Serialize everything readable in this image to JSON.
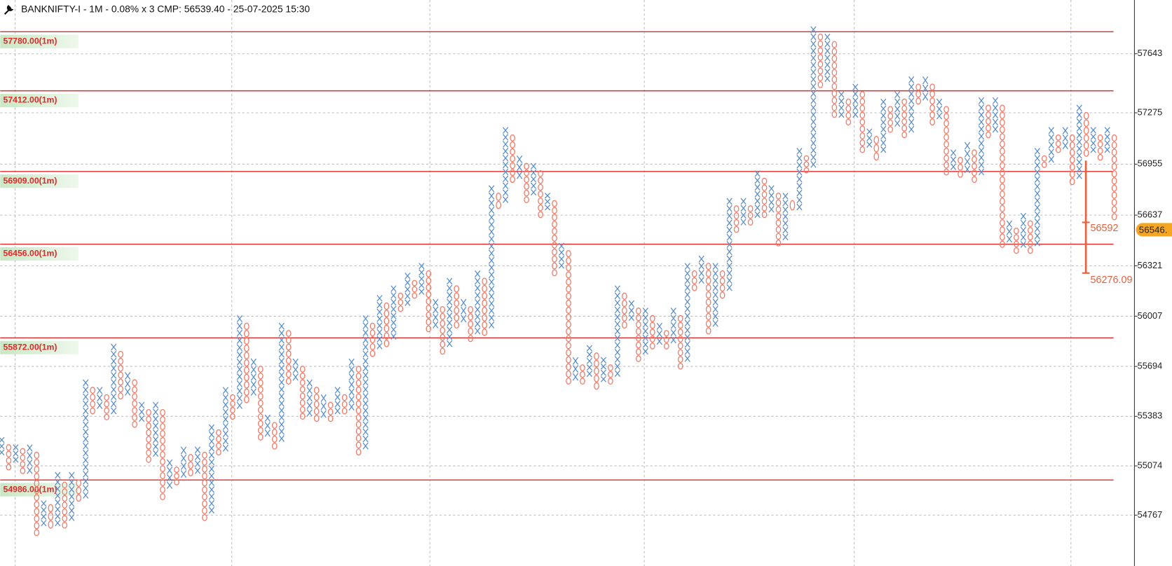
{
  "chart_data": {
    "type": "point-and-figure",
    "title": "BANKNIFTY-I - 1M - 0.08% x 3 CMP: 56539.40 - 25-07-2025 15:30",
    "ylim": [
      54450,
      57978
    ],
    "yticks": [
      54767,
      55074,
      55383,
      55694,
      56007,
      56321,
      56637,
      56955,
      57275,
      57643
    ],
    "grid": true,
    "x_color": "#5b8fc9",
    "o_color": "#ee7a68",
    "level_color": "#e02a2a",
    "levels": [
      {
        "value": 57780,
        "label": "57780.00(1m)"
      },
      {
        "value": 57412,
        "label": "57412.00(1m)"
      },
      {
        "value": 56909,
        "label": "56909.00(1m)"
      },
      {
        "value": 56456,
        "label": "56456.00(1m)"
      },
      {
        "value": 55872,
        "label": "55872.00(1m)"
      },
      {
        "value": 54986,
        "label": "54986.00(1m)"
      }
    ],
    "last_price": {
      "value": 56546,
      "label": "56546."
    },
    "projection": {
      "start": 56977,
      "target1": 56592,
      "target2": 56276.09,
      "color": "#e8603c"
    },
    "columns": [
      {
        "kind": "X",
        "high": 55255,
        "low": 55139
      },
      {
        "kind": "O",
        "high": 55209,
        "low": 55046
      },
      {
        "kind": "X",
        "high": 55209,
        "low": 55093
      },
      {
        "kind": "O",
        "high": 55186,
        "low": 55023
      },
      {
        "kind": "X",
        "high": 55209,
        "low": 55023
      },
      {
        "kind": "O",
        "high": 55162,
        "low": 54636
      },
      {
        "kind": "X",
        "high": 54860,
        "low": 54697
      },
      {
        "kind": "O",
        "high": 54836,
        "low": 54683
      },
      {
        "kind": "X",
        "high": 55037,
        "low": 54697
      },
      {
        "kind": "O",
        "high": 54976,
        "low": 54683
      },
      {
        "kind": "X",
        "high": 55037,
        "low": 54730
      },
      {
        "kind": "O",
        "high": 54990,
        "low": 54851
      },
      {
        "kind": "X",
        "high": 55614,
        "low": 54869
      },
      {
        "kind": "O",
        "high": 55567,
        "low": 55395
      },
      {
        "kind": "X",
        "high": 55567,
        "low": 55428
      },
      {
        "kind": "O",
        "high": 55521,
        "low": 55358
      },
      {
        "kind": "X",
        "high": 55837,
        "low": 55395
      },
      {
        "kind": "O",
        "high": 55791,
        "low": 55488
      },
      {
        "kind": "X",
        "high": 55660,
        "low": 55511
      },
      {
        "kind": "O",
        "high": 55614,
        "low": 55311
      },
      {
        "kind": "X",
        "high": 55474,
        "low": 55348
      },
      {
        "kind": "O",
        "high": 55428,
        "low": 55093
      },
      {
        "kind": "X",
        "high": 55474,
        "low": 55130
      },
      {
        "kind": "O",
        "high": 55428,
        "low": 54860
      },
      {
        "kind": "X",
        "high": 55116,
        "low": 54930
      },
      {
        "kind": "O",
        "high": 55069,
        "low": 54953
      },
      {
        "kind": "X",
        "high": 55195,
        "low": 54999
      },
      {
        "kind": "O",
        "high": 55148,
        "low": 55009
      },
      {
        "kind": "X",
        "high": 55195,
        "low": 55023
      },
      {
        "kind": "O",
        "high": 55162,
        "low": 54730
      },
      {
        "kind": "X",
        "high": 55334,
        "low": 54776
      },
      {
        "kind": "O",
        "high": 55302,
        "low": 55139
      },
      {
        "kind": "X",
        "high": 55567,
        "low": 55162
      },
      {
        "kind": "O",
        "high": 55521,
        "low": 55362
      },
      {
        "kind": "X",
        "high": 56014,
        "low": 55428
      },
      {
        "kind": "O",
        "high": 55967,
        "low": 55465
      },
      {
        "kind": "X",
        "high": 55744,
        "low": 55511
      },
      {
        "kind": "O",
        "high": 55698,
        "low": 55232
      },
      {
        "kind": "X",
        "high": 55395,
        "low": 55255
      },
      {
        "kind": "O",
        "high": 55348,
        "low": 55176
      },
      {
        "kind": "X",
        "high": 55967,
        "low": 55223
      },
      {
        "kind": "O",
        "high": 55921,
        "low": 55581
      },
      {
        "kind": "X",
        "high": 55744,
        "low": 55604
      },
      {
        "kind": "O",
        "high": 55698,
        "low": 55362
      },
      {
        "kind": "X",
        "high": 55614,
        "low": 55381
      },
      {
        "kind": "O",
        "high": 55567,
        "low": 55348
      },
      {
        "kind": "X",
        "high": 55521,
        "low": 55372
      },
      {
        "kind": "O",
        "high": 55474,
        "low": 55348
      },
      {
        "kind": "X",
        "high": 55567,
        "low": 55395
      },
      {
        "kind": "O",
        "high": 55521,
        "low": 55395
      },
      {
        "kind": "X",
        "high": 55744,
        "low": 55418
      },
      {
        "kind": "O",
        "high": 55698,
        "low": 55139
      },
      {
        "kind": "X",
        "high": 56014,
        "low": 55176
      },
      {
        "kind": "O",
        "high": 55967,
        "low": 55753
      },
      {
        "kind": "X",
        "high": 56140,
        "low": 55800
      },
      {
        "kind": "O",
        "high": 56093,
        "low": 55814
      },
      {
        "kind": "X",
        "high": 56200,
        "low": 55860
      },
      {
        "kind": "O",
        "high": 56154,
        "low": 56033
      },
      {
        "kind": "X",
        "high": 56279,
        "low": 56070
      },
      {
        "kind": "O",
        "high": 56233,
        "low": 56116
      },
      {
        "kind": "X",
        "high": 56340,
        "low": 56140
      },
      {
        "kind": "O",
        "high": 56293,
        "low": 55907
      },
      {
        "kind": "X",
        "high": 56116,
        "low": 55930
      },
      {
        "kind": "O",
        "high": 56070,
        "low": 55767
      },
      {
        "kind": "X",
        "high": 56247,
        "low": 55814
      },
      {
        "kind": "O",
        "high": 56200,
        "low": 55930
      },
      {
        "kind": "X",
        "high": 56116,
        "low": 55967
      },
      {
        "kind": "O",
        "high": 56070,
        "low": 55846
      },
      {
        "kind": "X",
        "high": 56293,
        "low": 55893
      },
      {
        "kind": "O",
        "high": 56247,
        "low": 55884
      },
      {
        "kind": "X",
        "high": 56824,
        "low": 55930
      },
      {
        "kind": "O",
        "high": 56777,
        "low": 56675
      },
      {
        "kind": "X",
        "high": 57187,
        "low": 56712
      },
      {
        "kind": "O",
        "high": 57140,
        "low": 56838
      },
      {
        "kind": "X",
        "high": 57010,
        "low": 56861
      },
      {
        "kind": "O",
        "high": 56963,
        "low": 56712
      },
      {
        "kind": "X",
        "high": 56963,
        "low": 56759
      },
      {
        "kind": "O",
        "high": 56917,
        "low": 56619
      },
      {
        "kind": "X",
        "high": 56777,
        "low": 56666
      },
      {
        "kind": "O",
        "high": 56731,
        "low": 56256
      },
      {
        "kind": "X",
        "high": 56465,
        "low": 56303
      },
      {
        "kind": "O",
        "high": 56419,
        "low": 55581
      },
      {
        "kind": "X",
        "high": 55753,
        "low": 55604
      },
      {
        "kind": "O",
        "high": 55707,
        "low": 55581
      },
      {
        "kind": "X",
        "high": 55828,
        "low": 55628
      },
      {
        "kind": "O",
        "high": 55781,
        "low": 55549
      },
      {
        "kind": "X",
        "high": 55753,
        "low": 55595
      },
      {
        "kind": "O",
        "high": 55707,
        "low": 55581
      },
      {
        "kind": "X",
        "high": 56200,
        "low": 55628
      },
      {
        "kind": "O",
        "high": 56154,
        "low": 55930
      },
      {
        "kind": "X",
        "high": 56107,
        "low": 55977
      },
      {
        "kind": "O",
        "high": 56061,
        "low": 55721
      },
      {
        "kind": "X",
        "high": 56061,
        "low": 55767
      },
      {
        "kind": "O",
        "high": 56014,
        "low": 55800
      },
      {
        "kind": "X",
        "high": 55967,
        "low": 55828
      },
      {
        "kind": "O",
        "high": 55921,
        "low": 55800
      },
      {
        "kind": "X",
        "high": 56061,
        "low": 55837
      },
      {
        "kind": "O",
        "high": 56014,
        "low": 55674
      },
      {
        "kind": "X",
        "high": 56340,
        "low": 55721
      },
      {
        "kind": "O",
        "high": 56293,
        "low": 56163
      },
      {
        "kind": "X",
        "high": 56386,
        "low": 56209
      },
      {
        "kind": "O",
        "high": 56340,
        "low": 55893
      },
      {
        "kind": "X",
        "high": 56340,
        "low": 55940
      },
      {
        "kind": "O",
        "high": 56293,
        "low": 56116
      },
      {
        "kind": "X",
        "high": 56745,
        "low": 56163
      },
      {
        "kind": "O",
        "high": 56698,
        "low": 56526
      },
      {
        "kind": "X",
        "high": 56745,
        "low": 56572
      },
      {
        "kind": "O",
        "high": 56698,
        "low": 56572
      },
      {
        "kind": "X",
        "high": 56917,
        "low": 56619
      },
      {
        "kind": "O",
        "high": 56870,
        "low": 56619
      },
      {
        "kind": "X",
        "high": 56824,
        "low": 56652
      },
      {
        "kind": "O",
        "high": 56777,
        "low": 56442
      },
      {
        "kind": "X",
        "high": 56777,
        "low": 56479
      },
      {
        "kind": "O",
        "high": 56731,
        "low": 56666
      },
      {
        "kind": "X",
        "high": 57057,
        "low": 56666
      },
      {
        "kind": "O",
        "high": 57010,
        "low": 56898
      },
      {
        "kind": "X",
        "high": 57815,
        "low": 56931
      },
      {
        "kind": "O",
        "high": 57769,
        "low": 57429
      },
      {
        "kind": "X",
        "high": 57769,
        "low": 57466
      },
      {
        "kind": "O",
        "high": 57722,
        "low": 57243
      },
      {
        "kind": "X",
        "high": 57410,
        "low": 57243
      },
      {
        "kind": "O",
        "high": 57364,
        "low": 57196
      },
      {
        "kind": "X",
        "high": 57457,
        "low": 57243
      },
      {
        "kind": "O",
        "high": 57410,
        "low": 57024
      },
      {
        "kind": "X",
        "high": 57178,
        "low": 57057
      },
      {
        "kind": "O",
        "high": 57131,
        "low": 56977
      },
      {
        "kind": "X",
        "high": 57364,
        "low": 57024
      },
      {
        "kind": "O",
        "high": 57317,
        "low": 57150
      },
      {
        "kind": "X",
        "high": 57410,
        "low": 57187
      },
      {
        "kind": "O",
        "high": 57364,
        "low": 57117
      },
      {
        "kind": "X",
        "high": 57503,
        "low": 57150
      },
      {
        "kind": "O",
        "high": 57457,
        "low": 57326
      },
      {
        "kind": "X",
        "high": 57503,
        "low": 57350
      },
      {
        "kind": "O",
        "high": 57457,
        "low": 57196
      },
      {
        "kind": "X",
        "high": 57364,
        "low": 57233
      },
      {
        "kind": "O",
        "high": 57317,
        "low": 56884
      },
      {
        "kind": "X",
        "high": 57047,
        "low": 56917
      },
      {
        "kind": "O",
        "high": 57001,
        "low": 56870
      },
      {
        "kind": "X",
        "high": 57094,
        "low": 56898
      },
      {
        "kind": "O",
        "high": 57047,
        "low": 56838
      },
      {
        "kind": "X",
        "high": 57373,
        "low": 56884
      },
      {
        "kind": "O",
        "high": 57326,
        "low": 57117
      },
      {
        "kind": "X",
        "high": 57373,
        "low": 57150
      },
      {
        "kind": "O",
        "high": 57326,
        "low": 56433
      },
      {
        "kind": "X",
        "high": 56605,
        "low": 56465
      },
      {
        "kind": "O",
        "high": 56559,
        "low": 56396
      },
      {
        "kind": "X",
        "high": 56652,
        "low": 56433
      },
      {
        "kind": "O",
        "high": 56605,
        "low": 56396
      },
      {
        "kind": "X",
        "high": 57057,
        "low": 56442
      },
      {
        "kind": "O",
        "high": 57010,
        "low": 56931
      },
      {
        "kind": "X",
        "high": 57187,
        "low": 56963
      },
      {
        "kind": "O",
        "high": 57140,
        "low": 57024
      },
      {
        "kind": "X",
        "high": 57187,
        "low": 57047
      },
      {
        "kind": "O",
        "high": 57140,
        "low": 56824
      },
      {
        "kind": "X",
        "high": 57326,
        "low": 56861
      },
      {
        "kind": "O",
        "high": 57280,
        "low": 57001
      },
      {
        "kind": "X",
        "high": 57187,
        "low": 57024
      },
      {
        "kind": "O",
        "high": 57140,
        "low": 56977
      },
      {
        "kind": "X",
        "high": 57187,
        "low": 57024
      },
      {
        "kind": "O",
        "high": 57140,
        "low": 56605
      }
    ]
  }
}
